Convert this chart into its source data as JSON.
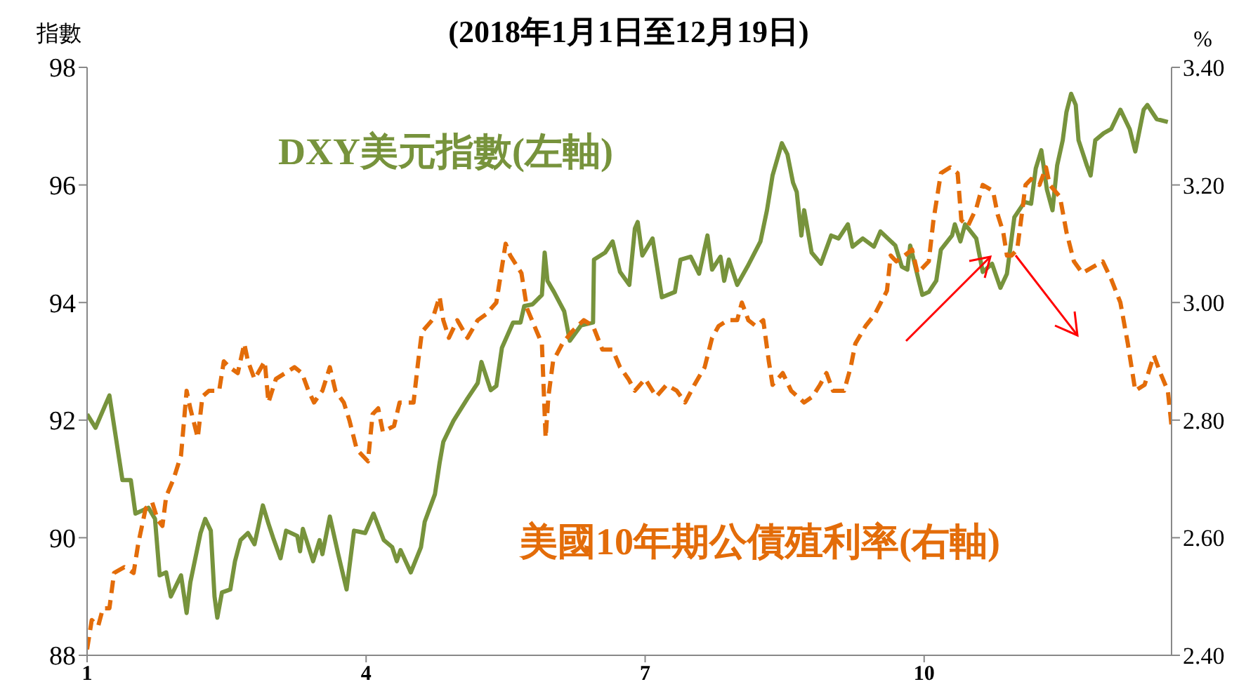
{
  "chart_data": {
    "type": "line",
    "subtitle": "(2018年1月1日至12月19日)",
    "ylabel": "指數",
    "y2label": "%",
    "grid": false,
    "marker": "none",
    "xlim": [
      1,
      12.66
    ],
    "xticks": [
      1,
      4,
      7,
      10
    ],
    "ylim": [
      88,
      98
    ],
    "yticks": [
      88,
      90,
      92,
      94,
      96,
      98
    ],
    "y2lim": [
      2.4,
      3.4
    ],
    "y2ticks": [
      {
        "value": 2.4,
        "label": "2.40"
      },
      {
        "value": 2.6,
        "label": "2.60"
      },
      {
        "value": 2.8,
        "label": "2.80"
      },
      {
        "value": 3.0,
        "label": "3.00"
      },
      {
        "value": 3.2,
        "label": "3.20"
      },
      {
        "value": 3.4,
        "label": "3.40"
      }
    ],
    "series": [
      {
        "name": "DXY美元指數(左軸)",
        "color": "#77933c",
        "line_style": "solid",
        "x": [
          1.0,
          1.09,
          1.24,
          1.38,
          1.47,
          1.52,
          1.66,
          1.73,
          1.78,
          1.85,
          1.9,
          2.01,
          2.07,
          2.11,
          2.22,
          2.27,
          2.33,
          2.37,
          2.4,
          2.45,
          2.54,
          2.59,
          2.65,
          2.73,
          2.8,
          2.89,
          2.95,
          3.0,
          3.08,
          3.14,
          3.26,
          3.29,
          3.32,
          3.43,
          3.5,
          3.53,
          3.61,
          3.7,
          3.79,
          3.87,
          3.99,
          4.08,
          4.19,
          4.28,
          4.33,
          4.37,
          4.48,
          4.59,
          4.63,
          4.74,
          4.79,
          4.83,
          4.94,
          5.09,
          5.2,
          5.24,
          5.34,
          5.4,
          5.46,
          5.58,
          5.66,
          5.7,
          5.79,
          5.89,
          5.92,
          5.95,
          6.02,
          6.13,
          6.19,
          6.31,
          6.44,
          6.45,
          6.57,
          6.65,
          6.73,
          6.83,
          6.89,
          6.92,
          6.97,
          7.08,
          7.18,
          7.32,
          7.38,
          7.49,
          7.58,
          7.67,
          7.72,
          7.81,
          7.85,
          7.9,
          7.99,
          8.1,
          8.24,
          8.31,
          8.37,
          8.47,
          8.53,
          8.59,
          8.63,
          8.68,
          8.71,
          8.79,
          8.89,
          9.0,
          9.08,
          9.18,
          9.23,
          9.34,
          9.46,
          9.53,
          9.69,
          9.76,
          9.82,
          9.85,
          9.95,
          9.98,
          10.05,
          10.13,
          10.18,
          10.3,
          10.33,
          10.39,
          10.44,
          10.56,
          10.63,
          10.73,
          10.82,
          10.89,
          10.97,
          11.08,
          11.15,
          11.2,
          11.26,
          11.32,
          11.38,
          11.43,
          11.49,
          11.53,
          11.58,
          11.63,
          11.66,
          11.75,
          11.79,
          11.84,
          11.93,
          12.01,
          12.11,
          12.21,
          12.27,
          12.36,
          12.4,
          12.5,
          12.62
        ],
        "values": [
          92.1,
          91.87,
          92.42,
          90.98,
          90.98,
          90.41,
          90.51,
          90.32,
          89.36,
          89.41,
          89.0,
          89.36,
          88.72,
          89.24,
          90.08,
          90.32,
          90.12,
          89.0,
          88.64,
          89.07,
          89.12,
          89.6,
          89.96,
          90.08,
          89.89,
          90.55,
          90.24,
          90.0,
          89.65,
          90.12,
          90.03,
          89.77,
          90.15,
          89.6,
          89.96,
          89.72,
          90.36,
          89.72,
          89.12,
          90.12,
          90.08,
          90.41,
          89.96,
          89.84,
          89.6,
          89.79,
          89.41,
          89.84,
          90.27,
          90.74,
          91.27,
          91.63,
          91.99,
          92.37,
          92.63,
          92.99,
          92.51,
          92.58,
          93.23,
          93.66,
          93.66,
          93.94,
          93.97,
          94.13,
          94.85,
          94.37,
          94.18,
          93.85,
          93.35,
          93.61,
          93.66,
          94.73,
          94.85,
          95.04,
          94.52,
          94.3,
          95.26,
          95.37,
          94.8,
          95.09,
          94.09,
          94.18,
          94.73,
          94.78,
          94.49,
          95.14,
          94.56,
          94.78,
          94.37,
          94.73,
          94.3,
          94.61,
          95.04,
          95.57,
          96.16,
          96.71,
          96.52,
          96.04,
          95.88,
          95.14,
          95.57,
          94.85,
          94.66,
          95.14,
          95.09,
          95.33,
          94.95,
          95.09,
          94.95,
          95.21,
          94.97,
          94.61,
          94.56,
          94.97,
          94.32,
          94.13,
          94.18,
          94.37,
          94.9,
          95.14,
          95.33,
          95.04,
          95.33,
          95.09,
          94.52,
          94.66,
          94.25,
          94.49,
          95.45,
          95.71,
          95.68,
          96.28,
          96.59,
          95.92,
          95.57,
          96.33,
          96.76,
          97.24,
          97.55,
          97.36,
          96.76,
          96.33,
          96.16,
          96.76,
          96.88,
          96.95,
          97.28,
          96.95,
          96.57,
          97.28,
          97.36,
          97.12,
          97.07
        ]
      },
      {
        "name": "美國10年期公債殖利率(右軸)",
        "color": "#e36c09",
        "line_style": "dashed",
        "axis": "y2",
        "x": [
          1.0,
          1.05,
          1.12,
          1.17,
          1.24,
          1.29,
          1.4,
          1.5,
          1.55,
          1.63,
          1.7,
          1.76,
          1.81,
          1.85,
          1.93,
          2.01,
          2.07,
          2.11,
          2.19,
          2.24,
          2.31,
          2.42,
          2.47,
          2.53,
          2.62,
          2.69,
          2.73,
          2.8,
          2.91,
          2.95,
          3.03,
          3.23,
          3.31,
          3.38,
          3.44,
          3.53,
          3.61,
          3.67,
          3.76,
          3.82,
          3.9,
          4.02,
          4.07,
          4.13,
          4.18,
          4.3,
          4.36,
          4.51,
          4.56,
          4.6,
          4.71,
          4.79,
          4.83,
          4.89,
          4.98,
          5.09,
          5.2,
          5.29,
          5.4,
          5.5,
          5.55,
          5.67,
          5.73,
          5.81,
          5.89,
          5.93,
          5.96,
          6.01,
          6.11,
          6.21,
          6.34,
          6.44,
          6.54,
          6.65,
          6.73,
          6.82,
          6.89,
          7.0,
          7.12,
          7.23,
          7.34,
          7.43,
          7.53,
          7.64,
          7.72,
          7.79,
          7.89,
          7.99,
          8.04,
          8.11,
          8.19,
          8.27,
          8.33,
          8.37,
          8.48,
          8.57,
          8.71,
          8.8,
          8.88,
          8.95,
          9.02,
          9.14,
          9.21,
          9.26,
          9.37,
          9.47,
          9.6,
          9.64,
          9.7,
          9.79,
          9.87,
          9.93,
          10.05,
          10.1,
          10.18,
          10.28,
          10.36,
          10.4,
          10.47,
          10.56,
          10.63,
          10.74,
          10.79,
          10.85,
          10.89,
          10.94,
          11.0,
          11.05,
          11.09,
          11.15,
          11.24,
          11.31,
          11.35,
          11.46,
          11.53,
          11.61,
          11.7,
          11.81,
          11.92,
          12.01,
          12.11,
          12.19,
          12.27,
          12.37,
          12.47,
          12.54,
          12.62,
          12.66
        ],
        "values": [
          2.41,
          2.46,
          2.45,
          2.48,
          2.48,
          2.54,
          2.55,
          2.54,
          2.59,
          2.65,
          2.66,
          2.63,
          2.62,
          2.67,
          2.7,
          2.74,
          2.85,
          2.82,
          2.77,
          2.84,
          2.85,
          2.85,
          2.9,
          2.89,
          2.88,
          2.93,
          2.9,
          2.87,
          2.9,
          2.83,
          2.87,
          2.89,
          2.88,
          2.85,
          2.83,
          2.85,
          2.89,
          2.85,
          2.83,
          2.8,
          2.75,
          2.73,
          2.81,
          2.82,
          2.78,
          2.79,
          2.83,
          2.83,
          2.9,
          2.95,
          2.97,
          3.01,
          2.97,
          2.94,
          2.97,
          2.94,
          2.97,
          2.98,
          3.0,
          3.1,
          3.08,
          3.05,
          2.99,
          2.96,
          2.93,
          2.77,
          2.84,
          2.9,
          2.93,
          2.95,
          2.97,
          2.96,
          2.92,
          2.92,
          2.89,
          2.87,
          2.85,
          2.87,
          2.84,
          2.86,
          2.85,
          2.83,
          2.86,
          2.89,
          2.94,
          2.96,
          2.97,
          2.97,
          3.0,
          2.97,
          2.96,
          2.97,
          2.9,
          2.86,
          2.88,
          2.85,
          2.83,
          2.84,
          2.86,
          2.88,
          2.85,
          2.85,
          2.89,
          2.93,
          2.96,
          2.98,
          3.02,
          3.08,
          3.07,
          3.08,
          3.09,
          3.05,
          3.07,
          3.14,
          3.22,
          3.23,
          3.22,
          3.14,
          3.13,
          3.16,
          3.2,
          3.19,
          3.15,
          3.12,
          3.08,
          3.08,
          3.09,
          3.15,
          3.2,
          3.21,
          3.2,
          3.23,
          3.2,
          3.18,
          3.12,
          3.07,
          3.05,
          3.06,
          3.07,
          3.04,
          3.0,
          2.93,
          2.85,
          2.86,
          2.91,
          2.88,
          2.85,
          2.79
        ]
      }
    ]
  }
}
